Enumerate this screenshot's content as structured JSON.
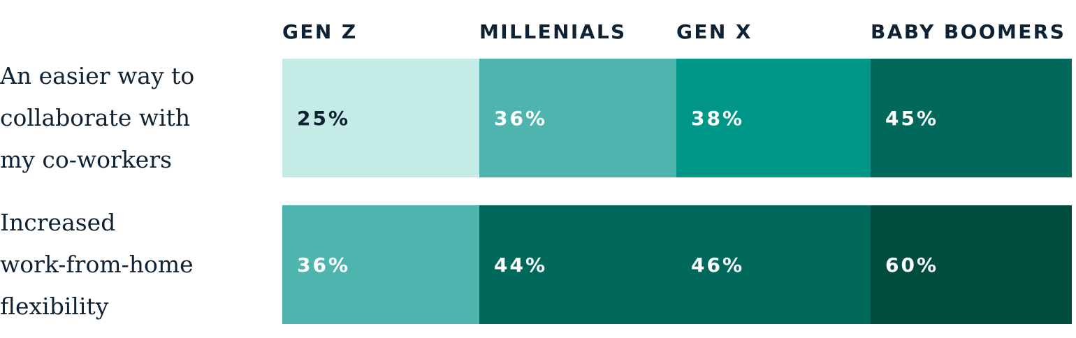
{
  "chart_data": {
    "type": "table",
    "columns": [
      "GEN Z",
      "MILLENIALS",
      "GEN X",
      "BABY BOOMERS"
    ],
    "rows": [
      {
        "label_lines": [
          "An easier way to",
          "collaborate with",
          "my co-workers"
        ],
        "values": [
          "25%",
          "36%",
          "38%",
          "45%"
        ],
        "colors": [
          "#c4ebe5",
          "#4db5ad",
          "#009688",
          "#00695c"
        ],
        "text_colors": [
          "#0f2233",
          "#ffffff",
          "#ffffff",
          "#ffffff"
        ]
      },
      {
        "label_lines": [
          "Increased",
          "work-from-home",
          "flexibility"
        ],
        "values": [
          "36%",
          "44%",
          "46%",
          "60%"
        ],
        "colors": [
          "#4db5ad",
          "#00695c",
          "#00695c",
          "#004d40"
        ],
        "text_colors": [
          "#ffffff",
          "#ffffff",
          "#ffffff",
          "#ffffff"
        ]
      }
    ]
  }
}
